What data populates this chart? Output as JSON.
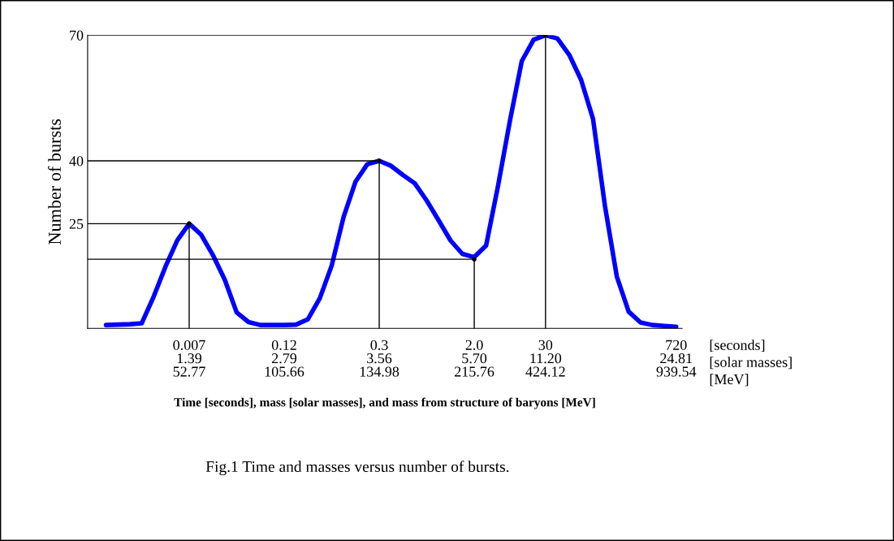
{
  "chart_data": {
    "type": "line",
    "xlabel": "Time [seconds], mass [solar masses], and mass from structure of baryons [MeV]",
    "ylabel": "Number of bursts",
    "categories": [
      null,
      null,
      null,
      null,
      null,
      null,
      null,
      null,
      "0.007\n1.39\n52.77",
      null,
      null,
      null,
      null,
      null,
      null,
      null,
      "0.12\n2.79\n105.66",
      null,
      null,
      null,
      null,
      null,
      null,
      null,
      "0.3\n3.56\n134.98",
      null,
      null,
      null,
      null,
      null,
      null,
      null,
      "2.0\n5.70\n215.76",
      null,
      null,
      null,
      null,
      null,
      "30\n11.20\n424.12",
      null,
      null,
      null,
      null,
      null,
      null,
      null,
      null,
      null,
      null,
      "720\n24.81\n939.54"
    ],
    "ylim": [
      0,
      70
    ],
    "yticks": [
      25,
      40,
      70
    ],
    "marker": "none",
    "annotations": [
      "[seconds]",
      "[solar masses]",
      "[MeV]",
      "Fig.1 Time and masses versus number of bursts."
    ],
    "series": [
      {
        "color": "#0000ff",
        "values": [
          null,
          0.8,
          0.9,
          1.0,
          1.2,
          7.5,
          14.7,
          21,
          25,
          22.4,
          17.5,
          11.6,
          3.8,
          1.5,
          0.8,
          0.8,
          0.8,
          0.9,
          2.2,
          7.2,
          15,
          26.6,
          35,
          39.2,
          40,
          38.8,
          36.6,
          34.6,
          30.5,
          25.8,
          21,
          17.8,
          17,
          19.8,
          34,
          49.5,
          63.8,
          68.9,
          70,
          69.2,
          65.3,
          59.3,
          50,
          29.3,
          12.4,
          4,
          1.4,
          0.8,
          0.6,
          0.4
        ]
      },
      {
        "type": "lollipop",
        "color": "#000000",
        "values": [
          null,
          null,
          null,
          null,
          null,
          null,
          null,
          null,
          25,
          null,
          null,
          null,
          null,
          null,
          null,
          null,
          null,
          null,
          null,
          null,
          null,
          null,
          null,
          null,
          40,
          null,
          null,
          null,
          null,
          null,
          null,
          null,
          16.5,
          null,
          null,
          null,
          null,
          null,
          70,
          null,
          null,
          null,
          null,
          null,
          null,
          null,
          null,
          null,
          null,
          null
        ]
      }
    ]
  }
}
